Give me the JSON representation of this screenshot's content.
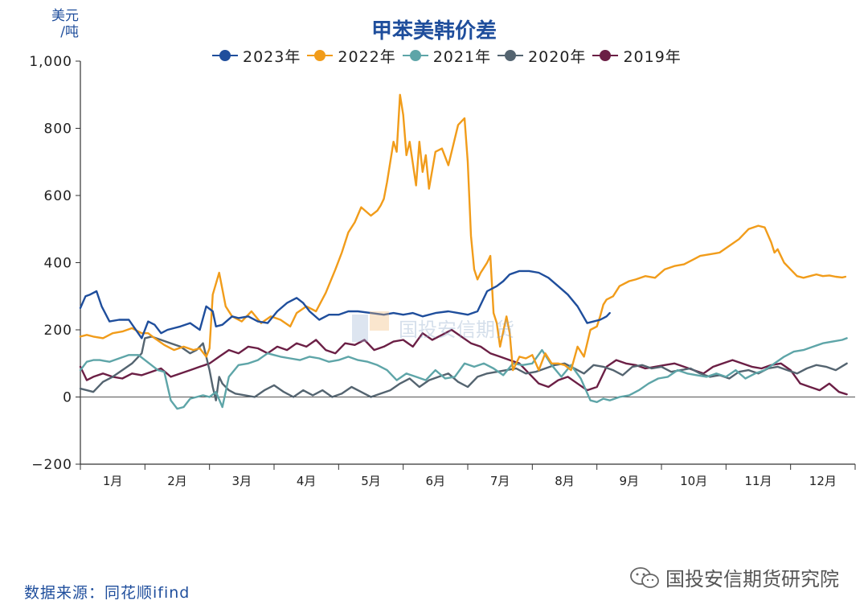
{
  "unit_label": [
    "美元",
    "/吨"
  ],
  "source": "数据来源：同花顺ifind",
  "brand": "国投安信期货研究院",
  "watermark": "国投安信期货",
  "chart_data": {
    "type": "line",
    "title": "甲苯美韩价差",
    "ylim": [
      -200,
      1000
    ],
    "y_ticks": [
      -200,
      0,
      200,
      400,
      600,
      800,
      1000
    ],
    "y_tick_labels": [
      "−200",
      "0",
      "200",
      "400",
      "600",
      "800",
      "1,000"
    ],
    "x_range": [
      1,
      13
    ],
    "x_tick_labels": [
      "1月",
      "2月",
      "3月",
      "4月",
      "5月",
      "6月",
      "7月",
      "8月",
      "9月",
      "10月",
      "11月",
      "12月"
    ],
    "grid": false,
    "legend_position": "top-center",
    "series": [
      {
        "name": "2023年",
        "color": "#1f4e9c",
        "x": [
          1.0,
          1.08,
          1.15,
          1.25,
          1.33,
          1.45,
          1.6,
          1.75,
          1.95,
          2.05,
          2.15,
          2.25,
          2.35,
          2.45,
          2.55,
          2.7,
          2.85,
          2.95,
          3.05,
          3.1,
          3.2,
          3.35,
          3.45,
          3.6,
          3.75,
          3.9,
          4.05,
          4.2,
          4.35,
          4.45,
          4.55,
          4.7,
          4.85,
          5.0,
          5.15,
          5.3,
          5.5,
          5.7,
          5.85,
          6.0,
          6.15,
          6.3,
          6.5,
          6.7,
          6.85,
          7.0,
          7.15,
          7.3,
          7.45,
          7.55,
          7.65,
          7.8,
          7.95,
          8.1,
          8.25,
          8.4,
          8.55,
          8.7,
          8.85,
          8.95,
          9.05,
          9.1,
          9.15,
          9.2
        ],
        "y": [
          265,
          300,
          305,
          315,
          270,
          225,
          230,
          230,
          175,
          225,
          215,
          190,
          200,
          205,
          210,
          220,
          200,
          270,
          255,
          210,
          215,
          240,
          235,
          240,
          225,
          220,
          255,
          280,
          295,
          280,
          255,
          230,
          245,
          245,
          255,
          255,
          250,
          245,
          250,
          245,
          250,
          240,
          250,
          255,
          250,
          245,
          255,
          315,
          330,
          345,
          365,
          375,
          375,
          370,
          355,
          330,
          305,
          270,
          220,
          225,
          230,
          235,
          240,
          250
        ]
      },
      {
        "name": "2022年",
        "color": "#f19c1a",
        "x": [
          1.0,
          1.1,
          1.2,
          1.35,
          1.5,
          1.65,
          1.8,
          1.95,
          2.05,
          2.15,
          2.3,
          2.45,
          2.6,
          2.75,
          2.85,
          2.95,
          3.0,
          3.05,
          3.15,
          3.25,
          3.35,
          3.5,
          3.65,
          3.8,
          3.95,
          4.1,
          4.25,
          4.35,
          4.5,
          4.65,
          4.8,
          4.95,
          5.05,
          5.15,
          5.25,
          5.35,
          5.5,
          5.6,
          5.65,
          5.7,
          5.75,
          5.8,
          5.85,
          5.9,
          5.95,
          6.0,
          6.05,
          6.1,
          6.2,
          6.25,
          6.3,
          6.35,
          6.4,
          6.5,
          6.6,
          6.7,
          6.85,
          6.95,
          7.0,
          7.05,
          7.1,
          7.15,
          7.2,
          7.25,
          7.3,
          7.35,
          7.4,
          7.45,
          7.5,
          7.55,
          7.6,
          7.65,
          7.7,
          7.8,
          7.9,
          8.0,
          8.1,
          8.2,
          8.3,
          8.4,
          8.5,
          8.6,
          8.7,
          8.8,
          8.9,
          9.0,
          9.05,
          9.1,
          9.15,
          9.25,
          9.35,
          9.5,
          9.6,
          9.75,
          9.9,
          10.05,
          10.2,
          10.35,
          10.5,
          10.6,
          10.75,
          10.9,
          11.05,
          11.2,
          11.35,
          11.5,
          11.6,
          11.7,
          11.75,
          11.8,
          11.9,
          12.0,
          12.1,
          12.2,
          12.3,
          12.4,
          12.5,
          12.6,
          12.7,
          12.8,
          12.85
        ],
        "y": [
          180,
          185,
          180,
          175,
          190,
          195,
          205,
          190,
          190,
          175,
          155,
          140,
          150,
          140,
          145,
          120,
          145,
          305,
          370,
          270,
          240,
          225,
          255,
          220,
          240,
          230,
          210,
          250,
          270,
          255,
          310,
          380,
          430,
          490,
          520,
          565,
          540,
          555,
          570,
          590,
          640,
          700,
          760,
          730,
          900,
          840,
          720,
          760,
          630,
          760,
          670,
          720,
          620,
          730,
          740,
          690,
          810,
          830,
          700,
          480,
          380,
          350,
          370,
          385,
          400,
          420,
          250,
          220,
          150,
          195,
          240,
          190,
          80,
          120,
          115,
          125,
          80,
          130,
          100,
          100,
          95,
          80,
          150,
          120,
          200,
          210,
          240,
          275,
          290,
          300,
          330,
          345,
          350,
          360,
          355,
          380,
          390,
          395,
          410,
          420,
          425,
          430,
          450,
          470,
          500,
          510,
          505,
          460,
          430,
          440,
          400,
          380,
          360,
          355,
          360,
          365,
          360,
          362,
          358,
          356,
          358
        ]
      },
      {
        "name": "2021年",
        "color": "#5ea5a8",
        "x": [
          1.0,
          1.1,
          1.2,
          1.3,
          1.45,
          1.6,
          1.75,
          1.9,
          2.0,
          2.1,
          2.2,
          2.3,
          2.4,
          2.5,
          2.6,
          2.7,
          2.8,
          2.9,
          3.0,
          3.1,
          3.2,
          3.3,
          3.45,
          3.6,
          3.75,
          3.9,
          4.0,
          4.1,
          4.25,
          4.4,
          4.55,
          4.7,
          4.85,
          5.0,
          5.15,
          5.3,
          5.45,
          5.6,
          5.75,
          5.9,
          6.05,
          6.2,
          6.35,
          6.5,
          6.65,
          6.8,
          6.95,
          7.1,
          7.25,
          7.4,
          7.55,
          7.7,
          7.85,
          8.0,
          8.15,
          8.3,
          8.45,
          8.6,
          8.75,
          8.9,
          9.0,
          9.1,
          9.2,
          9.35,
          9.5,
          9.65,
          9.8,
          9.95,
          10.1,
          10.25,
          10.4,
          10.55,
          10.7,
          10.85,
          11.0,
          11.15,
          11.3,
          11.45,
          11.6,
          11.75,
          11.9,
          12.05,
          12.2,
          12.35,
          12.5,
          12.65,
          12.8,
          12.87
        ],
        "y": [
          80,
          105,
          110,
          110,
          105,
          115,
          125,
          125,
          110,
          95,
          80,
          75,
          -10,
          -35,
          -30,
          -5,
          0,
          5,
          0,
          15,
          -30,
          60,
          95,
          100,
          110,
          130,
          125,
          120,
          115,
          110,
          120,
          115,
          105,
          110,
          120,
          110,
          105,
          95,
          80,
          50,
          70,
          60,
          50,
          80,
          55,
          60,
          100,
          90,
          100,
          85,
          65,
          100,
          95,
          100,
          140,
          95,
          60,
          95,
          55,
          -10,
          -15,
          -5,
          -10,
          0,
          5,
          20,
          40,
          55,
          60,
          80,
          70,
          65,
          60,
          70,
          60,
          80,
          55,
          70,
          80,
          100,
          120,
          135,
          140,
          150,
          160,
          165,
          170,
          175
        ]
      },
      {
        "name": "2020年",
        "color": "#546470",
        "x": [
          1.0,
          1.1,
          1.2,
          1.35,
          1.5,
          1.65,
          1.8,
          1.95,
          2.0,
          2.1,
          2.25,
          2.4,
          2.55,
          2.7,
          2.8,
          2.9,
          3.0,
          3.05,
          3.1,
          3.15,
          3.2,
          3.3,
          3.4,
          3.55,
          3.7,
          3.85,
          4.0,
          4.15,
          4.3,
          4.45,
          4.6,
          4.75,
          4.9,
          5.05,
          5.2,
          5.35,
          5.5,
          5.65,
          5.8,
          5.95,
          6.1,
          6.25,
          6.4,
          6.55,
          6.7,
          6.85,
          7.0,
          7.15,
          7.3,
          7.45,
          7.6,
          7.75,
          7.9,
          8.05,
          8.2,
          8.35,
          8.5,
          8.65,
          8.8,
          8.95,
          9.1,
          9.25,
          9.4,
          9.55,
          9.7,
          9.85,
          10.0,
          10.15,
          10.3,
          10.45,
          10.6,
          10.75,
          10.9,
          11.05,
          11.2,
          11.35,
          11.5,
          11.65,
          11.8,
          11.95,
          12.1,
          12.25,
          12.4,
          12.55,
          12.7,
          12.87
        ],
        "y": [
          25,
          20,
          15,
          45,
          60,
          80,
          100,
          130,
          175,
          180,
          170,
          160,
          150,
          130,
          140,
          160,
          80,
          30,
          -10,
          60,
          40,
          20,
          10,
          5,
          0,
          20,
          35,
          15,
          0,
          20,
          5,
          20,
          0,
          10,
          30,
          15,
          0,
          10,
          20,
          40,
          55,
          30,
          50,
          60,
          70,
          45,
          30,
          60,
          70,
          75,
          80,
          85,
          70,
          75,
          85,
          95,
          100,
          85,
          70,
          95,
          90,
          80,
          65,
          90,
          95,
          85,
          90,
          75,
          80,
          85,
          70,
          60,
          65,
          55,
          75,
          80,
          70,
          85,
          90,
          80,
          70,
          85,
          95,
          90,
          80,
          100
        ]
      },
      {
        "name": "2019年",
        "color": "#6b1f45",
        "x": [
          1.0,
          1.1,
          1.2,
          1.35,
          1.5,
          1.65,
          1.8,
          1.95,
          2.1,
          2.25,
          2.4,
          2.55,
          2.7,
          2.85,
          3.0,
          3.15,
          3.3,
          3.45,
          3.6,
          3.75,
          3.9,
          4.05,
          4.2,
          4.35,
          4.5,
          4.65,
          4.8,
          4.95,
          5.1,
          5.25,
          5.4,
          5.55,
          5.7,
          5.85,
          6.0,
          6.15,
          6.3,
          6.45,
          6.6,
          6.75,
          6.9,
          7.05,
          7.2,
          7.35,
          7.5,
          7.65,
          7.8,
          7.95,
          8.1,
          8.25,
          8.4,
          8.55,
          8.7,
          8.85,
          9.0,
          9.15,
          9.3,
          9.45,
          9.6,
          9.75,
          9.9,
          10.05,
          10.2,
          10.35,
          10.5,
          10.65,
          10.8,
          10.95,
          11.1,
          11.25,
          11.4,
          11.55,
          11.7,
          11.85,
          12.0,
          12.15,
          12.3,
          12.45,
          12.6,
          12.75,
          12.87
        ],
        "y": [
          90,
          50,
          60,
          70,
          60,
          55,
          70,
          65,
          75,
          85,
          60,
          70,
          80,
          90,
          100,
          120,
          140,
          130,
          150,
          145,
          130,
          150,
          140,
          160,
          150,
          170,
          140,
          130,
          160,
          155,
          170,
          140,
          150,
          165,
          170,
          150,
          190,
          170,
          185,
          200,
          180,
          160,
          150,
          130,
          120,
          110,
          100,
          70,
          40,
          30,
          50,
          60,
          40,
          20,
          30,
          90,
          110,
          100,
          95,
          85,
          90,
          95,
          100,
          90,
          80,
          70,
          90,
          100,
          110,
          100,
          90,
          85,
          95,
          100,
          80,
          40,
          30,
          20,
          40,
          15,
          8
        ]
      }
    ]
  }
}
